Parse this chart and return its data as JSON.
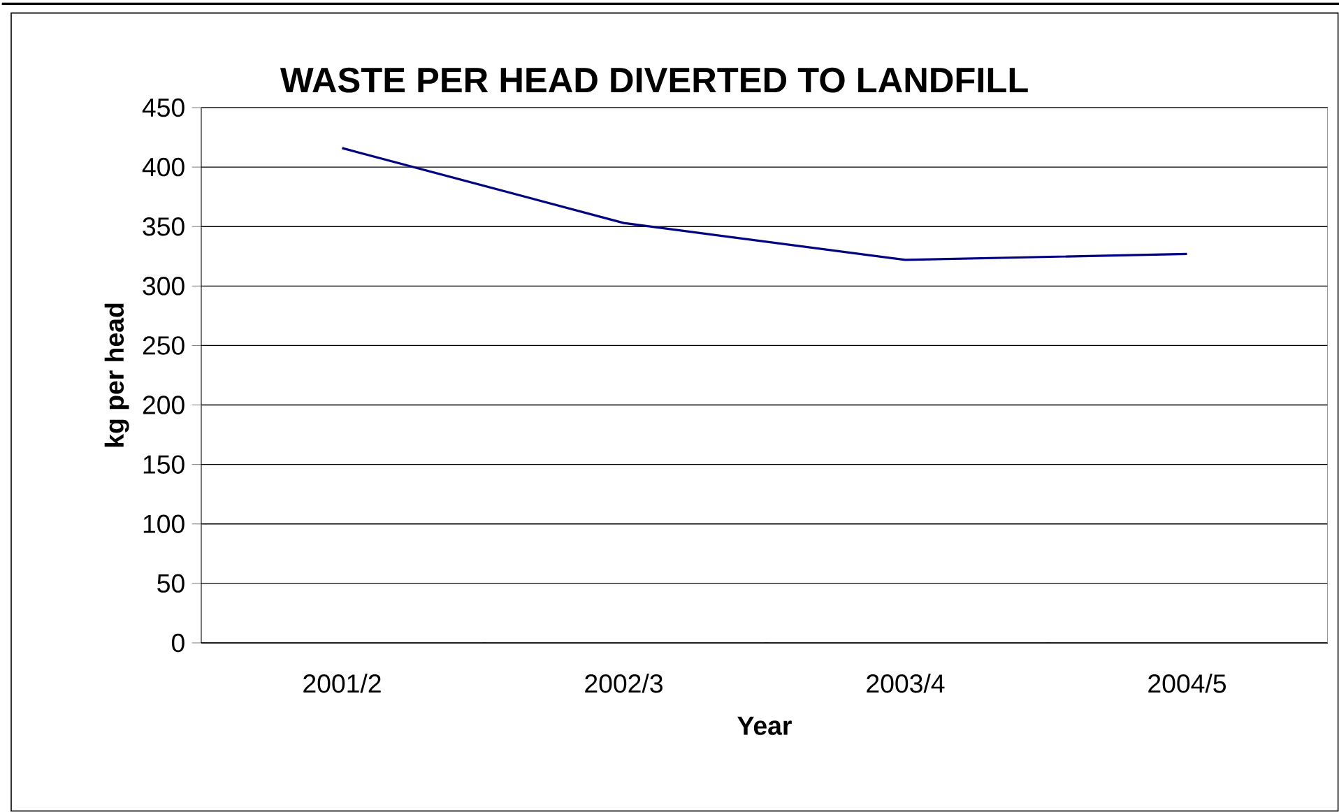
{
  "chart_data": {
    "type": "line",
    "title": "WASTE PER HEAD DIVERTED TO LANDFILL",
    "xlabel": "Year",
    "ylabel": "kg per head",
    "categories": [
      "2001/2",
      "2002/3",
      "2003/4",
      "2004/5"
    ],
    "series": [
      {
        "color": "#000080",
        "values": [
          416,
          353,
          322,
          327
        ]
      }
    ],
    "ylim": [
      0,
      450
    ],
    "yticks": [
      0,
      50,
      100,
      150,
      200,
      250,
      300,
      350,
      400,
      450
    ],
    "grid": "y",
    "marker": "none",
    "line_style": "solid"
  }
}
